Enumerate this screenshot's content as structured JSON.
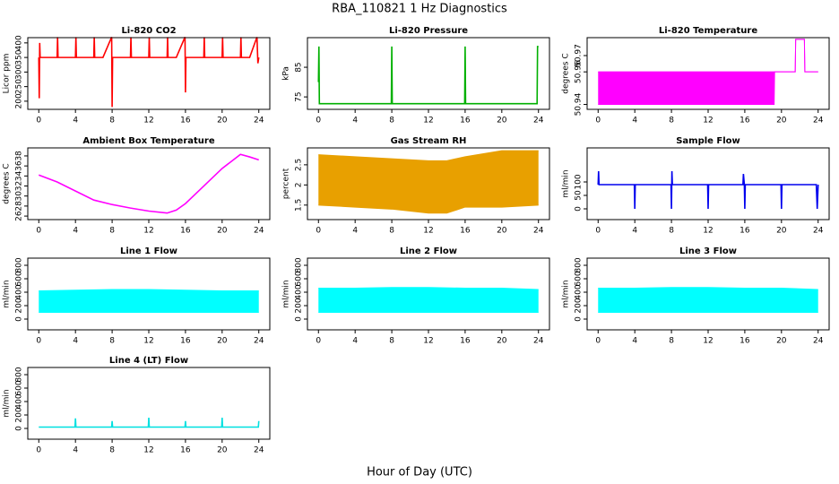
{
  "title": "RBA_110821  1 Hz Diagnostics",
  "xlabel": "Hour of Day (UTC)",
  "chart_data": [
    {
      "type": "line",
      "title": "Li-820 CO2",
      "ylabel": "Licor ppm",
      "x": [
        0,
        0.05,
        0.1,
        0.15,
        0.3,
        1,
        2,
        2.05,
        2.1,
        3,
        4,
        4.05,
        4.1,
        5,
        6,
        6.05,
        6.1,
        7,
        7.95,
        8,
        8.05,
        9,
        10,
        10.05,
        10.1,
        11,
        12,
        12.05,
        12.1,
        13,
        14,
        14.05,
        14.1,
        15,
        15.95,
        16,
        16.05,
        16.1,
        17,
        18,
        18.05,
        18.1,
        19,
        20,
        20.05,
        20.1,
        21,
        22,
        22.05,
        22.1,
        23,
        23.8,
        23.9,
        24
      ],
      "series": [
        {
          "color": "#ff0000",
          "values": [
            350,
            210,
            400,
            350,
            350,
            350,
            350,
            420,
            350,
            350,
            350,
            420,
            350,
            350,
            350,
            420,
            350,
            350,
            420,
            180,
            350,
            350,
            350,
            420,
            350,
            350,
            350,
            420,
            350,
            350,
            350,
            420,
            350,
            350,
            420,
            230,
            350,
            350,
            350,
            350,
            420,
            350,
            350,
            350,
            420,
            350,
            350,
            350,
            420,
            350,
            350,
            420,
            330,
            350
          ]
        }
      ],
      "xlim": [
        -1.2,
        25.2
      ],
      "ylim": [
        172,
        418
      ],
      "xticks": [
        0,
        4,
        8,
        12,
        16,
        20,
        24
      ],
      "yticks": [
        200,
        250,
        300,
        350,
        400
      ]
    },
    {
      "type": "line",
      "title": "Li-820 Pressure",
      "ylabel": "kPa",
      "x": [
        0,
        0.05,
        0.1,
        0.2,
        7.95,
        8,
        8.05,
        15.95,
        16,
        16.05,
        23.85,
        23.9,
        24
      ],
      "series": [
        {
          "color": "#00b000",
          "values": [
            80,
            92,
            72.7,
            72.7,
            72.7,
            92,
            72.7,
            72.7,
            92,
            72.7,
            72.7,
            92,
            92
          ]
        }
      ],
      "xlim": [
        -1.2,
        25.2
      ],
      "ylim": [
        70.8,
        95
      ],
      "xticks": [
        0,
        4,
        8,
        12,
        16,
        20,
        24
      ],
      "yticks": [
        75,
        85
      ]
    },
    {
      "type": "range",
      "title": "Li-820 Temperature",
      "ylabel": "degrees C",
      "x": [
        0,
        19.2,
        19.25,
        21.5,
        21.55,
        22.5,
        22.55,
        24
      ],
      "series": [
        {
          "color": "#ff00ff",
          "values": [
            50.94,
            50.94,
            50.96,
            50.96,
            50.98,
            50.98,
            50.96,
            50.96
          ]
        },
        {
          "color": "#ff00ff",
          "values": [
            50.96,
            50.96,
            50.96,
            50.96,
            50.98,
            50.98,
            50.96,
            50.96
          ]
        }
      ],
      "xlim": [
        -1.2,
        25.2
      ],
      "ylim": [
        50.937,
        50.981
      ],
      "xticks": [
        0,
        4,
        8,
        12,
        16,
        20,
        24
      ],
      "yticks": [
        50.94,
        50.96,
        50.97
      ]
    },
    {
      "type": "line",
      "title": "Ambient Box Temperature",
      "ylabel": "degrees C",
      "x": [
        0,
        2,
        4,
        6,
        8,
        10,
        12,
        14,
        15,
        16,
        18,
        20,
        22,
        23,
        24
      ],
      "series": [
        {
          "color": "#ff00ff",
          "values": [
            34.2,
            32.8,
            31,
            29.2,
            28.3,
            27.6,
            27,
            26.6,
            27.2,
            28.5,
            32,
            35.5,
            38.3,
            37.8,
            37.2
          ]
        }
      ],
      "xlim": [
        -1.2,
        25.2
      ],
      "ylim": [
        25.3,
        39.6
      ],
      "xticks": [
        0,
        4,
        8,
        12,
        16,
        20,
        24
      ],
      "yticks": [
        26,
        28,
        30,
        32,
        34,
        36,
        38
      ]
    },
    {
      "type": "range",
      "title": "Gas Stream RH",
      "ylabel": "percent",
      "x": [
        0,
        4,
        8,
        12,
        14,
        16,
        20,
        24
      ],
      "series": [
        {
          "color": "#e8a000",
          "values": [
            1.5,
            1.45,
            1.4,
            1.3,
            1.3,
            1.45,
            1.45,
            1.5
          ]
        },
        {
          "color": "#e8a000",
          "values": [
            2.75,
            2.7,
            2.65,
            2.6,
            2.6,
            2.7,
            2.85,
            2.85
          ]
        }
      ],
      "xlim": [
        -1.2,
        25.2
      ],
      "ylim": [
        1.14,
        2.92
      ],
      "xticks": [
        0,
        4,
        8,
        12,
        16,
        20,
        24
      ],
      "yticks": [
        1.5,
        2,
        2.5
      ]
    },
    {
      "type": "line",
      "title": "Sample Flow",
      "ylabel": "ml/min",
      "x": [
        0,
        0.05,
        0.1,
        3.95,
        4,
        4.05,
        7.95,
        8,
        8.05,
        8.1,
        11.95,
        12,
        12.05,
        15.8,
        15.85,
        15.95,
        16,
        16.05,
        19.95,
        20,
        20.05,
        23.8,
        23.9,
        24
      ],
      "series": [
        {
          "color": "#0000ee",
          "values": [
            90,
            140,
            90,
            90,
            0,
            90,
            90,
            0,
            140,
            90,
            90,
            0,
            90,
            90,
            130,
            90,
            0,
            90,
            90,
            0,
            90,
            90,
            0,
            90
          ]
        }
      ],
      "xlim": [
        -1.2,
        25.2
      ],
      "ylim": [
        -40,
        226.7
      ],
      "xticks": [
        0,
        4,
        8,
        12,
        16,
        20,
        24
      ],
      "yticks": [
        0,
        50,
        100
      ]
    },
    {
      "type": "range",
      "title": "Line 1 Flow",
      "ylabel": "ml/min",
      "x": [
        0,
        4,
        8,
        12,
        16,
        20,
        24
      ],
      "series": [
        {
          "color": "#00ffff",
          "values": [
            100,
            100,
            100,
            100,
            100,
            100,
            100
          ]
        },
        {
          "color": "#00ffff",
          "values": [
            420,
            430,
            440,
            440,
            430,
            420,
            420
          ]
        }
      ],
      "xlim": [
        -1.2,
        25.2
      ],
      "ylim": [
        -160,
        906.7
      ],
      "xticks": [
        0,
        4,
        8,
        12,
        16,
        20,
        24
      ],
      "yticks": [
        0,
        200,
        400,
        600,
        800
      ]
    },
    {
      "type": "range",
      "title": "Line 2 Flow",
      "ylabel": "ml/min",
      "x": [
        0,
        4,
        8,
        12,
        16,
        20,
        24
      ],
      "series": [
        {
          "color": "#00ffff",
          "values": [
            100,
            100,
            100,
            100,
            100,
            100,
            100
          ]
        },
        {
          "color": "#00ffff",
          "values": [
            460,
            460,
            470,
            470,
            460,
            460,
            440
          ]
        }
      ],
      "xlim": [
        -1.2,
        25.2
      ],
      "ylim": [
        -160,
        906.7
      ],
      "xticks": [
        0,
        4,
        8,
        12,
        16,
        20,
        24
      ],
      "yticks": [
        0,
        200,
        400,
        600,
        800
      ]
    },
    {
      "type": "range",
      "title": "Line 3 Flow",
      "ylabel": "ml/min",
      "x": [
        0,
        4,
        8,
        12,
        16,
        20,
        24
      ],
      "series": [
        {
          "color": "#00ffff",
          "values": [
            100,
            100,
            100,
            100,
            100,
            100,
            100
          ]
        },
        {
          "color": "#00ffff",
          "values": [
            460,
            460,
            470,
            470,
            460,
            460,
            440
          ]
        }
      ],
      "xlim": [
        -1.2,
        25.2
      ],
      "ylim": [
        -160,
        906.7
      ],
      "xticks": [
        0,
        4,
        8,
        12,
        16,
        20,
        24
      ],
      "yticks": [
        0,
        200,
        400,
        600,
        800
      ]
    },
    {
      "type": "line",
      "title": "Line 4 (LT) Flow",
      "ylabel": "ml/min",
      "x": [
        0,
        3.95,
        4,
        4.05,
        7.95,
        8,
        8.05,
        11.95,
        12,
        12.05,
        15.95,
        16,
        16.05,
        19.95,
        20,
        20.05,
        23.95,
        24
      ],
      "series": [
        {
          "color": "#00e0e0",
          "values": [
            20,
            20,
            150,
            20,
            20,
            110,
            20,
            20,
            160,
            20,
            20,
            110,
            20,
            20,
            160,
            20,
            20,
            110
          ]
        }
      ],
      "xlim": [
        -1.2,
        25.2
      ],
      "ylim": [
        -160,
        906.7
      ],
      "xticks": [
        0,
        4,
        8,
        12,
        16,
        20,
        24
      ],
      "yticks": [
        0,
        200,
        400,
        600,
        800
      ]
    }
  ]
}
